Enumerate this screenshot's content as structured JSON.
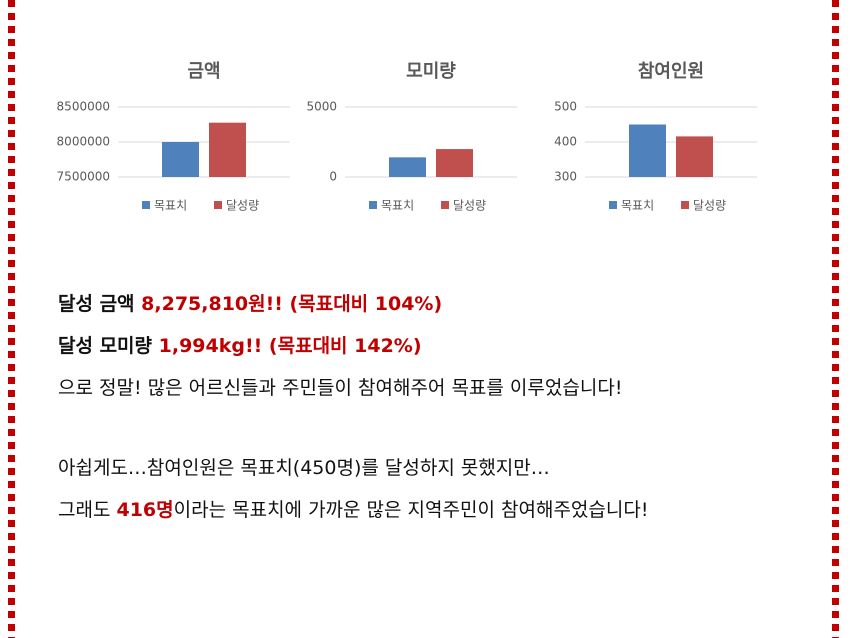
{
  "chart_data": [
    {
      "type": "bar",
      "title": "금액",
      "series": [
        {
          "name": "목표치",
          "color": "#4f81bd",
          "values": [
            8000000
          ]
        },
        {
          "name": "달성량",
          "color": "#c0504d",
          "values": [
            8275810
          ]
        }
      ],
      "ylim": [
        7500000,
        8500000
      ],
      "yticks": [
        7500000,
        8000000,
        8500000
      ],
      "grid": true
    },
    {
      "type": "bar",
      "title": "모미량",
      "series": [
        {
          "name": "목표치",
          "color": "#4f81bd",
          "values": [
            1404
          ]
        },
        {
          "name": "달성량",
          "color": "#c0504d",
          "values": [
            1994
          ]
        }
      ],
      "ylim": [
        0,
        5000
      ],
      "yticks": [
        0,
        5000
      ],
      "grid": true
    },
    {
      "type": "bar",
      "title": "참여인원",
      "series": [
        {
          "name": "목표치",
          "color": "#4f81bd",
          "values": [
            450
          ]
        },
        {
          "name": "달성량",
          "color": "#c0504d",
          "values": [
            416
          ]
        }
      ],
      "ylim": [
        300,
        500
      ],
      "yticks": [
        300,
        400,
        500
      ],
      "grid": true
    }
  ],
  "text": {
    "blocks": [
      [
        [
          {
            "text": "달성 금액 ",
            "highlight": false
          },
          {
            "text": "8,275,810원!! (목표대비 104%)",
            "highlight": true
          }
        ],
        [
          {
            "text": "달성 모미량 ",
            "highlight": false
          },
          {
            "text": "1,994kg!! (목표대비 142%)",
            "highlight": true
          }
        ],
        [
          {
            "text": "으로 정말! 많은 어르신들과 주민들이 참여해주어 목표를 이루었습니다!",
            "highlight": false
          }
        ]
      ],
      [
        [
          {
            "text": "아쉽게도…참여인원은 목표치(450명)를 달성하지 못했지만…",
            "highlight": false
          }
        ],
        [
          {
            "text": "그래도 ",
            "highlight": false
          },
          {
            "text": "416명",
            "highlight": true
          },
          {
            "text": "이라는 목표치에 가까운 많은 지역주민이 참여해주었습니다!",
            "highlight": false
          }
        ]
      ]
    ]
  }
}
